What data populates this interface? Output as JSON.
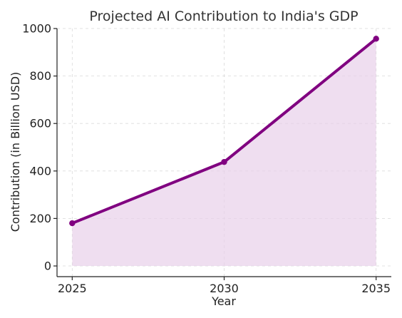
{
  "chart_data": {
    "type": "line",
    "title": "Projected AI Contribution to India's GDP",
    "xlabel": "Year",
    "ylabel": "Contribution (in Billion USD)",
    "x": [
      2025,
      2030,
      2035
    ],
    "series": [
      {
        "values": [
          180,
          438,
          957
        ],
        "color": "#800080",
        "fill_under": true,
        "fill_color": "#e8d0ea",
        "markers": true
      }
    ],
    "xlim": [
      2024.5,
      2035.5
    ],
    "ylim": [
      -45,
      1000
    ],
    "xticks": [
      2025,
      2030,
      2035
    ],
    "yticks": [
      0,
      200,
      400,
      600,
      800,
      1000
    ],
    "grid": true
  }
}
